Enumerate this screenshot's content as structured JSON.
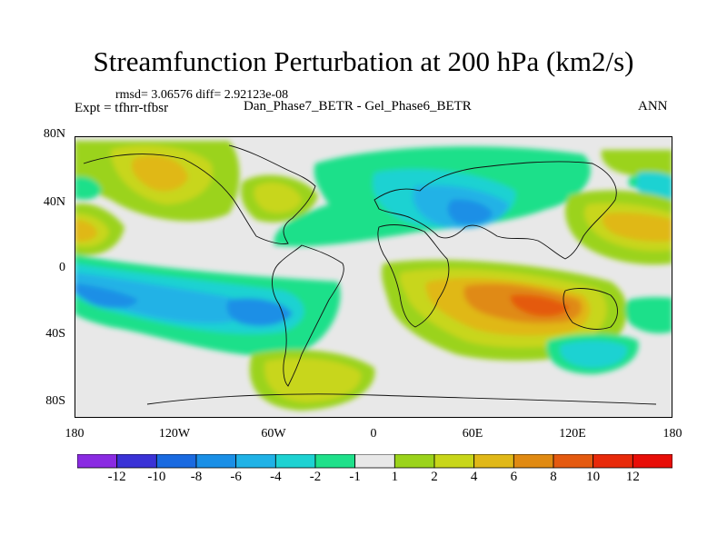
{
  "title": "Streamfunction Perturbation at 200 hPa (km2/s)",
  "stats": "rmsd= 3.06576 diff= 2.92123e-08",
  "experiment": "Expt = tfhrr-tfbsr",
  "cases": "Dan_Phase7_BETR - Gel_Phase6_BETR",
  "period": "ANN",
  "y_ticks": [
    "80N",
    "40N",
    "0",
    "40S",
    "80S"
  ],
  "x_ticks": [
    "180",
    "120W",
    "60W",
    "0",
    "60E",
    "120E",
    "180"
  ],
  "colorbar": {
    "labels": [
      "-12",
      "-10",
      "-8",
      "-6",
      "-4",
      "-2",
      "-1",
      "1",
      "2",
      "4",
      "6",
      "8",
      "10",
      "12"
    ],
    "colors": [
      "#8a2be2",
      "#3a32d6",
      "#1a6ae0",
      "#1a8fe6",
      "#20b2e6",
      "#1ed2d2",
      "#1fe08a",
      "#e8e8e8",
      "#9bd31b",
      "#c8d61a",
      "#e0b818",
      "#e08a12",
      "#e45a10",
      "#e82a0a",
      "#e80e08"
    ]
  }
}
